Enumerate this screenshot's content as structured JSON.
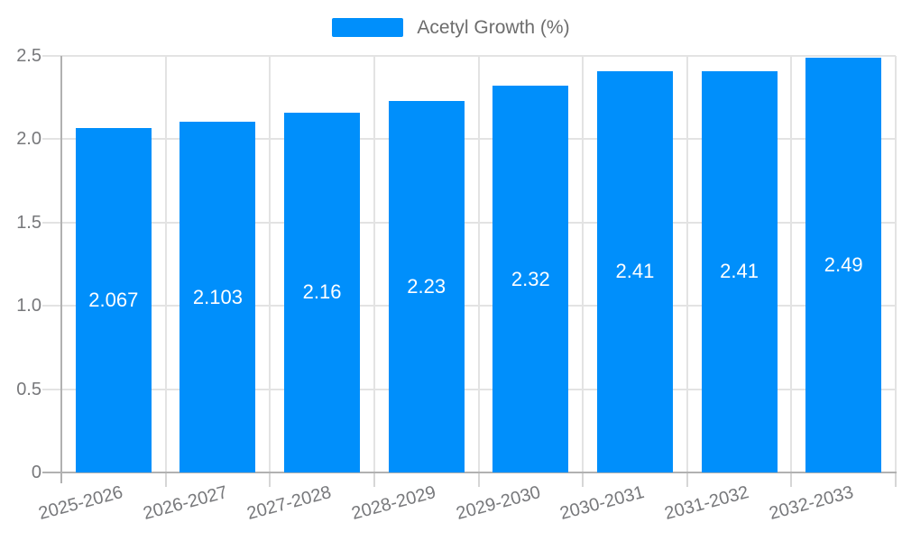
{
  "legend": {
    "label": "Acetyl Growth (%)"
  },
  "chart_data": {
    "type": "bar",
    "title": "",
    "xlabel": "",
    "ylabel": "",
    "categories": [
      "2025-2026",
      "2026-2027",
      "2027-2028",
      "2028-2029",
      "2029-2030",
      "2030-2031",
      "2031-2032",
      "2032-2033"
    ],
    "series": [
      {
        "name": "Acetyl Growth (%)",
        "values": [
          2.067,
          2.103,
          2.16,
          2.23,
          2.32,
          2.41,
          2.41,
          2.49
        ]
      }
    ],
    "data_labels": [
      "2.067",
      "2.103",
      "2.16",
      "2.23",
      "2.32",
      "2.41",
      "2.41",
      "2.49"
    ],
    "ylim": [
      0,
      2.5
    ],
    "yticks": [
      0,
      0.5,
      1,
      1.5,
      2,
      2.5
    ],
    "ytick_labels": [
      "0",
      "0.5",
      "1.0",
      "1.5",
      "2.0",
      "2.5"
    ],
    "grid": true,
    "legend_position": "top",
    "x_label_rotation_deg": -15,
    "colors": {
      "bar": "#008FFB",
      "grid": "#e3e3e3",
      "axis_line": "#b1b1b1",
      "axis_tick": "#d6d6d6",
      "axis_label": "#77787b",
      "legend_label": "#6d6d6d",
      "data_label": "#ffffff",
      "background": "#ffffff"
    }
  }
}
